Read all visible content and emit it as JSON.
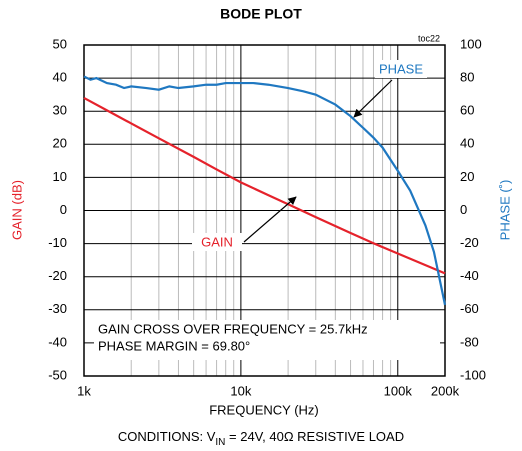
{
  "chart_data": {
    "type": "line",
    "title": "BODE PLOT",
    "tag": "toc22",
    "xlabel": "FREQUENCY (Hz)",
    "ylabel": "GAIN (dB)",
    "y2label": "PHASE (˚)",
    "xscale": "log",
    "grid": true,
    "xlim": [
      1000,
      200000
    ],
    "xticks": [
      {
        "value": 1000,
        "label": "1k"
      },
      {
        "value": 10000,
        "label": "10k"
      },
      {
        "value": 100000,
        "label": "100k"
      },
      {
        "value": 200000,
        "label": "200k"
      }
    ],
    "xminorticks": [
      2000,
      3000,
      4000,
      5000,
      6000,
      7000,
      8000,
      9000,
      20000,
      30000,
      40000,
      50000,
      60000,
      70000,
      80000,
      90000
    ],
    "ylim": [
      -50,
      50
    ],
    "yticks": [
      -50,
      -40,
      -30,
      -20,
      -10,
      0,
      10,
      20,
      30,
      40,
      50
    ],
    "y2lim": [
      -100,
      100
    ],
    "y2ticks": [
      -100,
      -80,
      -60,
      -40,
      -20,
      0,
      20,
      40,
      60,
      80,
      100
    ],
    "series": [
      {
        "name": "GAIN",
        "color": "#e5222b",
        "x": [
          1000,
          1500,
          2000,
          3000,
          5000,
          7000,
          10000,
          15000,
          20000,
          30000,
          50000,
          70000,
          100000,
          150000,
          200000
        ],
        "values": [
          34,
          29.5,
          26.3,
          21.8,
          16.2,
          12.4,
          8.5,
          4.6,
          1.9,
          -2.0,
          -6.8,
          -9.9,
          -13,
          -16.5,
          -19
        ]
      },
      {
        "name": "PHASE",
        "color": "#1f78c1",
        "axis": "y2",
        "x": [
          1000,
          1100,
          1200,
          1400,
          1600,
          1800,
          2000,
          2500,
          3000,
          3500,
          4000,
          5000,
          6000,
          7000,
          8000,
          10000,
          12000,
          15000,
          20000,
          25000,
          30000,
          40000,
          50000,
          60000,
          70000,
          80000,
          100000,
          120000,
          150000,
          170000,
          200000
        ],
        "values": [
          81,
          79,
          80,
          77,
          76,
          74,
          75,
          74,
          73,
          75,
          74,
          75,
          76,
          76,
          77,
          77,
          77,
          76,
          74,
          72,
          70,
          64,
          57,
          50,
          44,
          38,
          24,
          12,
          -9,
          -25,
          -57
        ]
      }
    ],
    "annotations": [
      "GAIN CROSS OVER FREQUENCY = 25.7kHz",
      "PHASE MARGIN = 69.80°"
    ],
    "footnote": {
      "prefix": "CONDITIONS: V",
      "sub": "IN",
      "suffix": " = 24V, 40Ω RESISTIVE LOAD"
    }
  }
}
